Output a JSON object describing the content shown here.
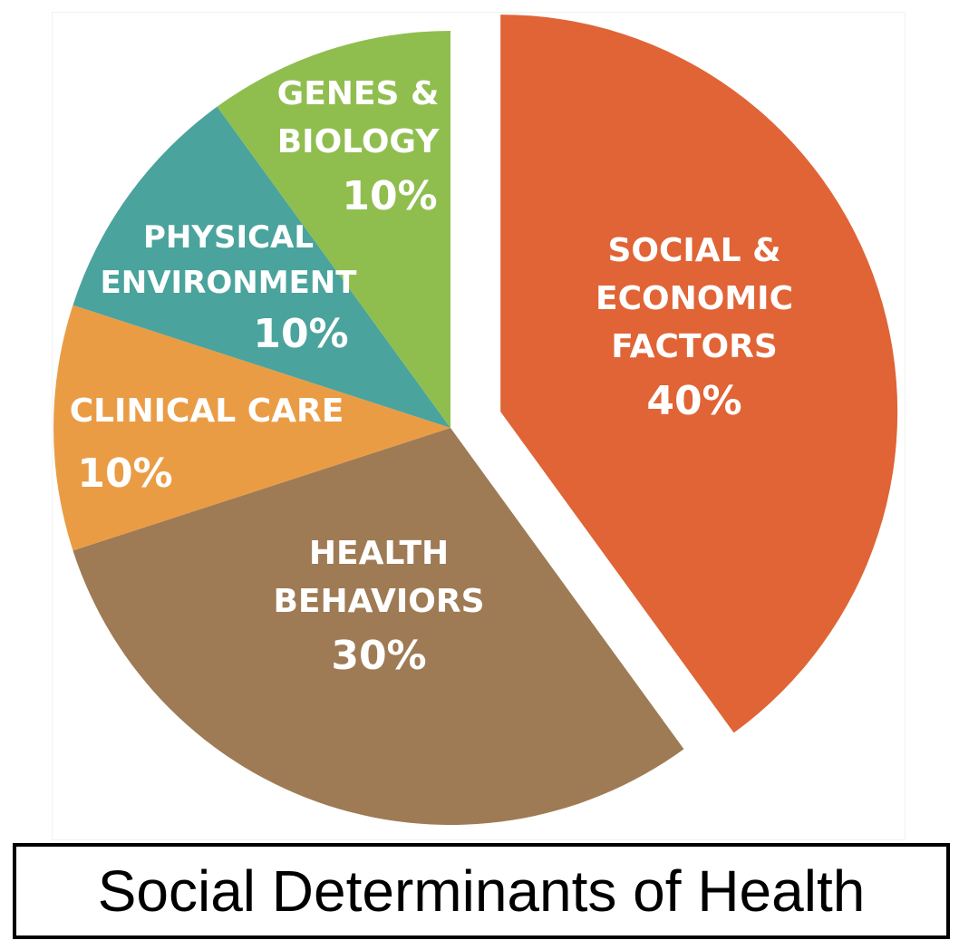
{
  "caption": "Social Determinants of Health",
  "chart_data": {
    "type": "pie",
    "title": "Social Determinants of Health",
    "slices": [
      {
        "lines": [
          "SOCIAL &",
          "ECONOMIC",
          "FACTORS"
        ],
        "value": 40,
        "value_label": "40%",
        "color": "#e06436",
        "exploded": true
      },
      {
        "lines": [
          "HEALTH",
          "BEHAVIORS"
        ],
        "value": 30,
        "value_label": "30%",
        "color": "#9e7b55",
        "exploded": false
      },
      {
        "lines": [
          "CLINICAL CARE"
        ],
        "value": 10,
        "value_label": "10%",
        "color": "#ea9c45",
        "exploded": false
      },
      {
        "lines": [
          "PHYSICAL",
          "ENVIRONMENT"
        ],
        "value": 10,
        "value_label": "10%",
        "color": "#4aa39c",
        "exploded": false
      },
      {
        "lines": [
          "GENES &",
          "BIOLOGY"
        ],
        "value": 10,
        "value_label": "10%",
        "color": "#8fbe4f",
        "exploded": false
      }
    ],
    "start_angle_deg": 0,
    "direction": "clockwise"
  }
}
